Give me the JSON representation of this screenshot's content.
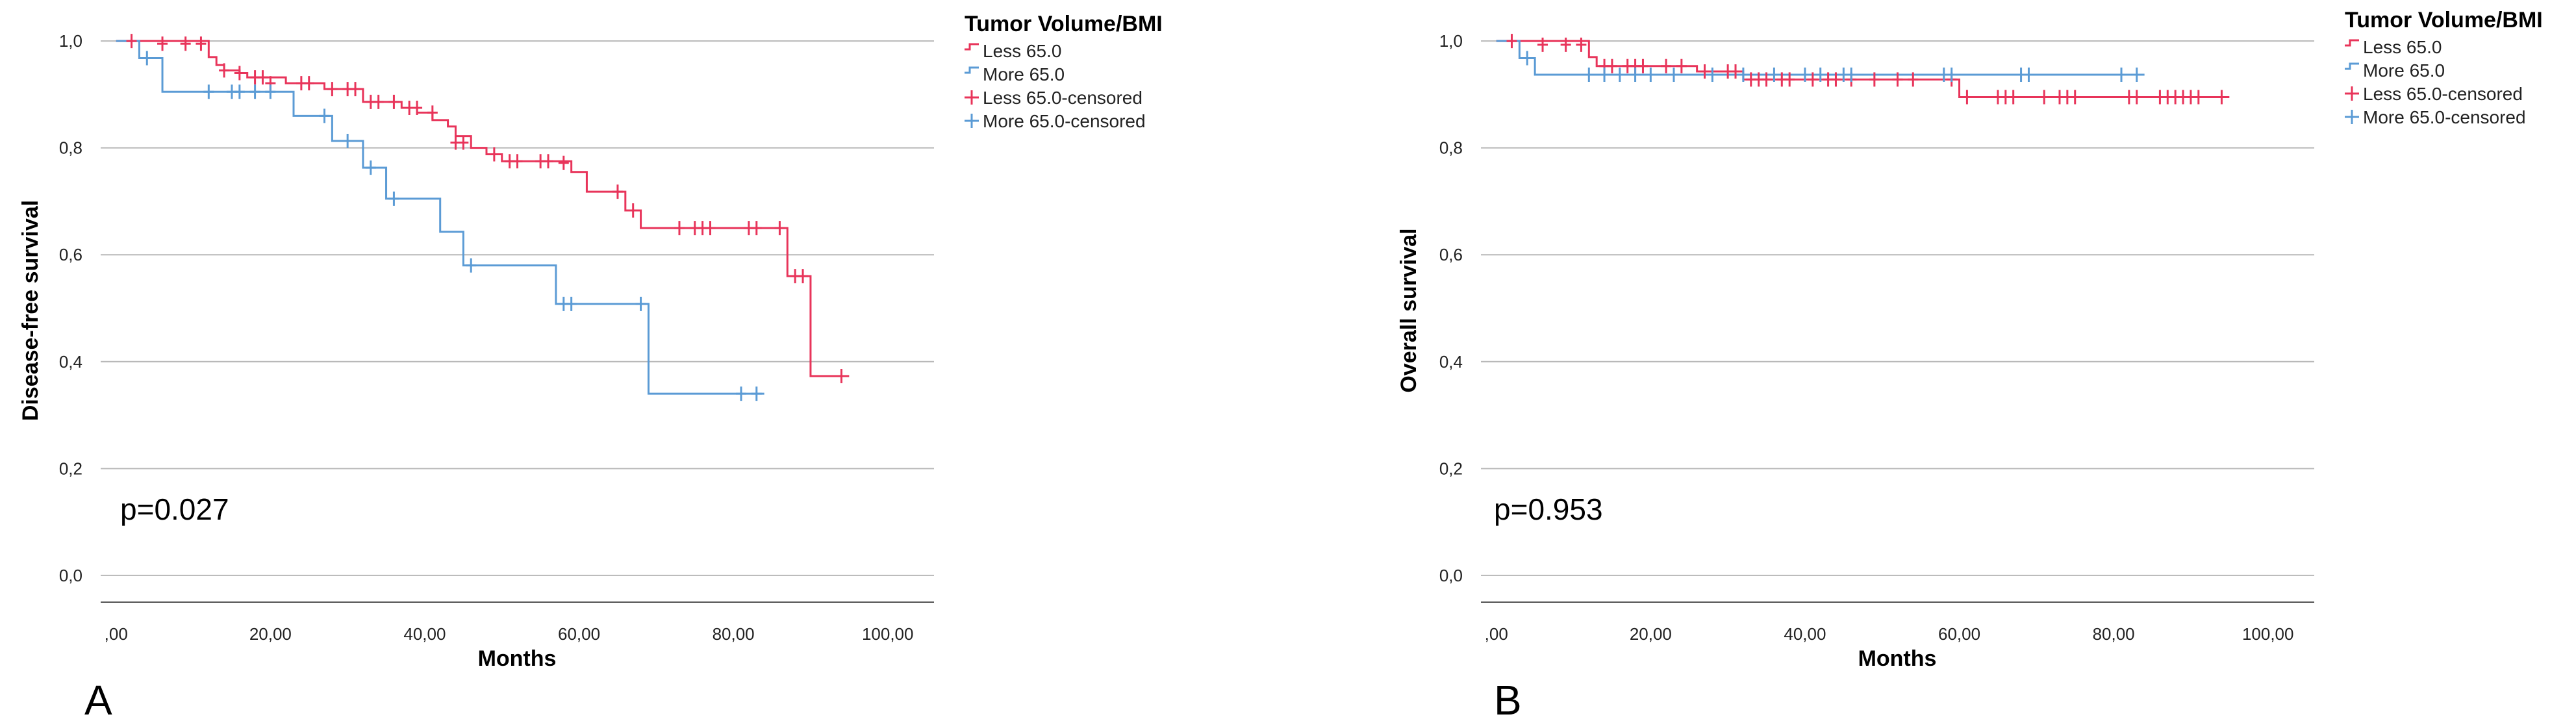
{
  "chart_data": [
    {
      "type": "line",
      "panel_label": "A",
      "xlabel": "Months",
      "ylabel": "Disease-free survival",
      "xlim": [
        -2,
        106
      ],
      "ylim": [
        -0.05,
        1.05
      ],
      "x_ticks": [
        0,
        20,
        40,
        60,
        80,
        100
      ],
      "x_tick_labels": [
        ",00",
        "20,00",
        "40,00",
        "60,00",
        "80,00",
        "100,00"
      ],
      "y_ticks": [
        0,
        0.2,
        0.4,
        0.6,
        0.8,
        1.0
      ],
      "y_tick_labels": [
        "0,0",
        "0,2",
        "0,4",
        "0,6",
        "0,8",
        "1,0"
      ],
      "grid": true,
      "annotation": "p=0.027",
      "legend": {
        "title": "Tumor Volume/BMI",
        "placement": "top-right-outside",
        "entries": [
          "Less 65.0",
          "More 65.0",
          "Less 65.0-censored",
          "More 65.0-censored"
        ]
      },
      "series": [
        {
          "name": "Less 65.0",
          "color": "#e8345a",
          "steps": [
            [
              0,
              1.0
            ],
            [
              12,
              0.97
            ],
            [
              13,
              0.955
            ],
            [
              14,
              0.945
            ],
            [
              16,
              0.94
            ],
            [
              17,
              0.932
            ],
            [
              22,
              0.921
            ],
            [
              27,
              0.91
            ],
            [
              32,
              0.886
            ],
            [
              37,
              0.875
            ],
            [
              39,
              0.866
            ],
            [
              41,
              0.852
            ],
            [
              43,
              0.84
            ],
            [
              44,
              0.822
            ],
            [
              46,
              0.8
            ],
            [
              48,
              0.788
            ],
            [
              50,
              0.775
            ],
            [
              59,
              0.755
            ],
            [
              61,
              0.718
            ],
            [
              66,
              0.683
            ],
            [
              68,
              0.65
            ],
            [
              87,
              0.56
            ],
            [
              90,
              0.373
            ],
            [
              95,
              0.373
            ]
          ],
          "censored": [
            [
              2,
              1.0
            ],
            [
              6,
              0.995
            ],
            [
              9,
              0.995
            ],
            [
              11,
              0.995
            ],
            [
              14,
              0.945
            ],
            [
              16,
              0.94
            ],
            [
              18,
              0.932
            ],
            [
              19,
              0.932
            ],
            [
              20,
              0.921
            ],
            [
              24,
              0.921
            ],
            [
              25,
              0.921
            ],
            [
              28,
              0.91
            ],
            [
              30,
              0.91
            ],
            [
              31,
              0.91
            ],
            [
              33,
              0.886
            ],
            [
              34,
              0.886
            ],
            [
              36,
              0.886
            ],
            [
              38,
              0.875
            ],
            [
              39,
              0.875
            ],
            [
              41,
              0.866
            ],
            [
              44,
              0.81
            ],
            [
              45,
              0.81
            ],
            [
              49,
              0.788
            ],
            [
              51,
              0.775
            ],
            [
              52,
              0.775
            ],
            [
              55,
              0.775
            ],
            [
              56,
              0.775
            ],
            [
              58,
              0.772
            ],
            [
              65,
              0.718
            ],
            [
              67,
              0.683
            ],
            [
              73,
              0.65
            ],
            [
              75,
              0.65
            ],
            [
              76,
              0.65
            ],
            [
              77,
              0.65
            ],
            [
              82,
              0.65
            ],
            [
              83,
              0.65
            ],
            [
              86,
              0.65
            ],
            [
              88,
              0.56
            ],
            [
              89,
              0.56
            ],
            [
              94,
              0.373
            ]
          ]
        },
        {
          "name": "More 65.0",
          "color": "#5b9bd5",
          "steps": [
            [
              0,
              1.0
            ],
            [
              3,
              0.968
            ],
            [
              6,
              0.905
            ],
            [
              23,
              0.86
            ],
            [
              28,
              0.813
            ],
            [
              32,
              0.763
            ],
            [
              35,
              0.705
            ],
            [
              42,
              0.643
            ],
            [
              45,
              0.58
            ],
            [
              57,
              0.508
            ],
            [
              69,
              0.34
            ],
            [
              84,
              0.34
            ]
          ],
          "censored": [
            [
              4,
              0.968
            ],
            [
              12,
              0.905
            ],
            [
              15,
              0.905
            ],
            [
              16,
              0.905
            ],
            [
              18,
              0.905
            ],
            [
              20,
              0.905
            ],
            [
              27,
              0.86
            ],
            [
              30,
              0.813
            ],
            [
              33,
              0.763
            ],
            [
              36,
              0.705
            ],
            [
              46,
              0.58
            ],
            [
              58,
              0.508
            ],
            [
              59,
              0.508
            ],
            [
              68,
              0.508
            ],
            [
              81,
              0.34
            ],
            [
              83,
              0.34
            ]
          ]
        }
      ]
    },
    {
      "type": "line",
      "panel_label": "B",
      "xlabel": "Months",
      "ylabel": "Overall survival",
      "xlim": [
        -2,
        106
      ],
      "ylim": [
        -0.05,
        1.05
      ],
      "x_ticks": [
        0,
        20,
        40,
        60,
        80,
        100
      ],
      "x_tick_labels": [
        ",00",
        "20,00",
        "40,00",
        "60,00",
        "80,00",
        "100,00"
      ],
      "y_ticks": [
        0,
        0.2,
        0.4,
        0.6,
        0.8,
        1.0
      ],
      "y_tick_labels": [
        "0,0",
        "0,2",
        "0,4",
        "0,6",
        "0,8",
        "1,0"
      ],
      "grid": true,
      "annotation": "p=0.953",
      "legend": {
        "title": "Tumor Volume/BMI",
        "placement": "top-right-outside",
        "entries": [
          "Less 65.0",
          "More 65.0",
          "Less 65.0-censored",
          "More 65.0-censored"
        ]
      },
      "series": [
        {
          "name": "Less 65.0",
          "color": "#e8345a",
          "steps": [
            [
              0,
              1.0
            ],
            [
              12,
              0.97
            ],
            [
              13,
              0.953
            ],
            [
              26,
              0.943
            ],
            [
              32,
              0.928
            ],
            [
              60,
              0.895
            ],
            [
              95,
              0.895
            ]
          ],
          "censored": [
            [
              2,
              1.0
            ],
            [
              6,
              0.993
            ],
            [
              9,
              0.993
            ],
            [
              11,
              0.993
            ],
            [
              14,
              0.953
            ],
            [
              15,
              0.953
            ],
            [
              17,
              0.953
            ],
            [
              18,
              0.953
            ],
            [
              19,
              0.953
            ],
            [
              22,
              0.953
            ],
            [
              24,
              0.953
            ],
            [
              27,
              0.943
            ],
            [
              30,
              0.943
            ],
            [
              31,
              0.943
            ],
            [
              33,
              0.928
            ],
            [
              34,
              0.928
            ],
            [
              35,
              0.928
            ],
            [
              37,
              0.928
            ],
            [
              38,
              0.928
            ],
            [
              41,
              0.928
            ],
            [
              43,
              0.928
            ],
            [
              44,
              0.928
            ],
            [
              46,
              0.928
            ],
            [
              49,
              0.928
            ],
            [
              52,
              0.928
            ],
            [
              54,
              0.928
            ],
            [
              59,
              0.928
            ],
            [
              61,
              0.895
            ],
            [
              65,
              0.895
            ],
            [
              66,
              0.895
            ],
            [
              67,
              0.895
            ],
            [
              71,
              0.895
            ],
            [
              73,
              0.895
            ],
            [
              74,
              0.895
            ],
            [
              75,
              0.895
            ],
            [
              82,
              0.895
            ],
            [
              83,
              0.895
            ],
            [
              86,
              0.895
            ],
            [
              87,
              0.895
            ],
            [
              88,
              0.895
            ],
            [
              89,
              0.895
            ],
            [
              90,
              0.895
            ],
            [
              91,
              0.895
            ],
            [
              94,
              0.895
            ]
          ]
        },
        {
          "name": "More 65.0",
          "color": "#5b9bd5",
          "steps": [
            [
              0,
              1.0
            ],
            [
              3,
              0.968
            ],
            [
              5,
              0.937
            ],
            [
              59,
              0.937
            ],
            [
              84,
              0.937
            ]
          ],
          "censored": [
            [
              4,
              0.968
            ],
            [
              12,
              0.937
            ],
            [
              14,
              0.937
            ],
            [
              16,
              0.937
            ],
            [
              18,
              0.937
            ],
            [
              20,
              0.937
            ],
            [
              23,
              0.937
            ],
            [
              28,
              0.937
            ],
            [
              32,
              0.937
            ],
            [
              36,
              0.937
            ],
            [
              40,
              0.937
            ],
            [
              42,
              0.937
            ],
            [
              45,
              0.937
            ],
            [
              46,
              0.937
            ],
            [
              58,
              0.937
            ],
            [
              59,
              0.937
            ],
            [
              68,
              0.937
            ],
            [
              69,
              0.937
            ],
            [
              81,
              0.937
            ],
            [
              83,
              0.937
            ]
          ]
        }
      ]
    }
  ]
}
